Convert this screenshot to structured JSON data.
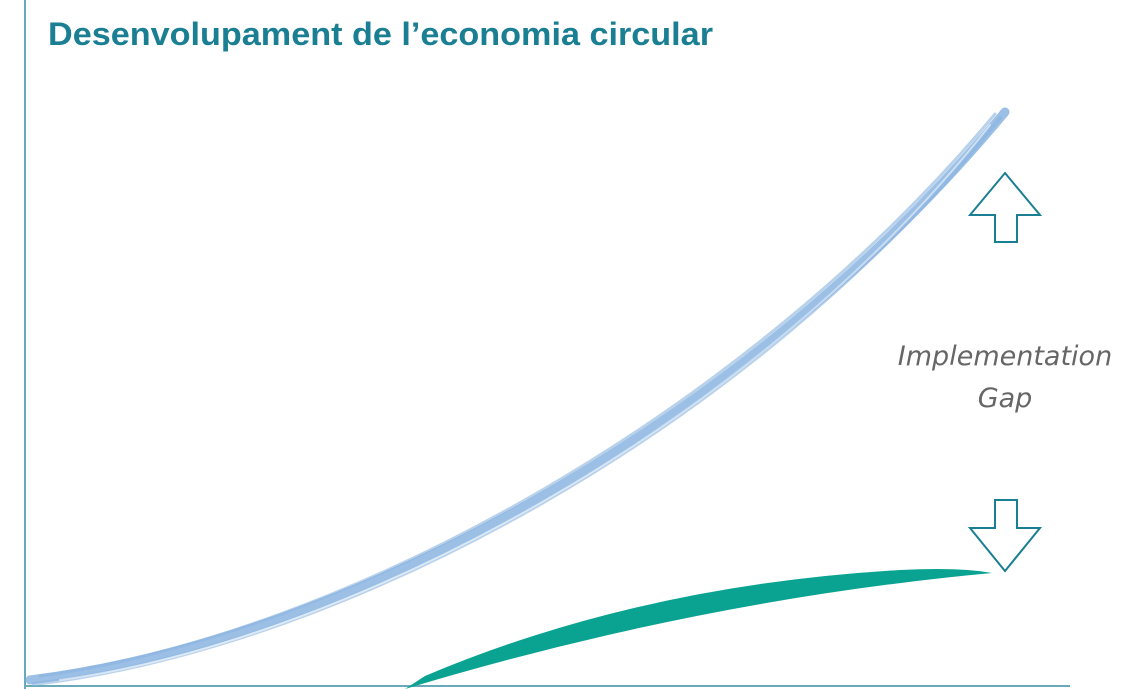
{
  "title": "Desenvolupament de l’economia circular",
  "annotation": {
    "lines": [
      "Implementation",
      "Gap"
    ]
  }
}
